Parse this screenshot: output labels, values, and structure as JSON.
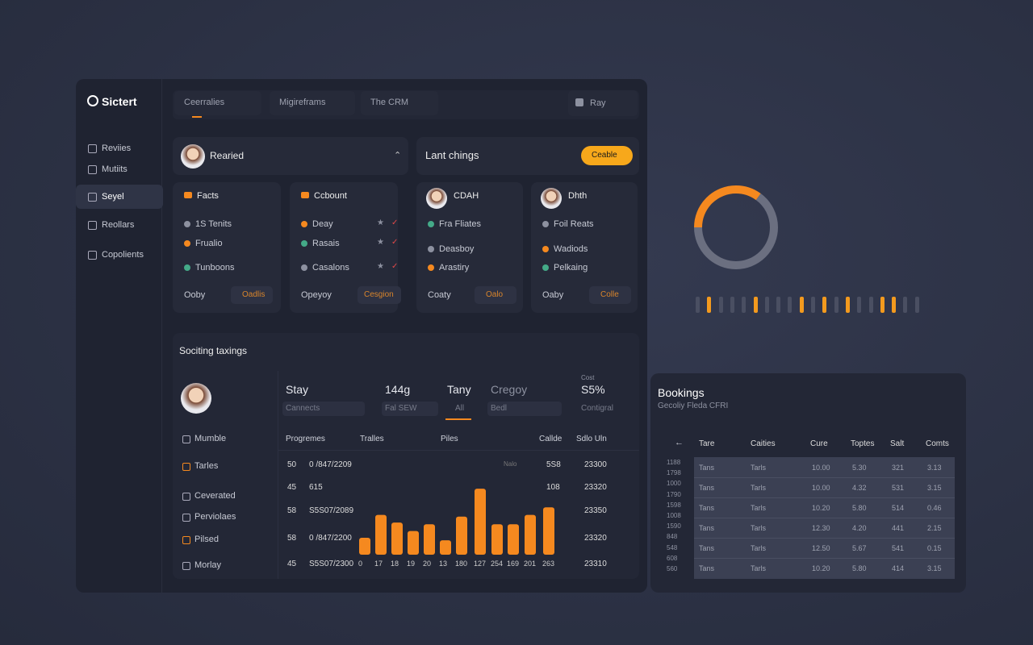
{
  "sidebar": {
    "logo": "Sictert",
    "nav": [
      "Reviies",
      "Mutiits",
      "Seyel",
      "Reollars",
      "Copolients"
    ]
  },
  "tabs": [
    "Ceerralies",
    "Migireframs",
    "The CRM"
  ],
  "user": "Ray",
  "profile_card": {
    "title": "Rearied"
  },
  "action_card": {
    "title": "Lant chings",
    "button": "Ceable"
  },
  "cards": [
    {
      "title": "Facts",
      "items": [
        "1S Tenits",
        "Frualio",
        "Tunboons"
      ],
      "footer": [
        "Ooby",
        "Oadlis"
      ]
    },
    {
      "title": "Ccbount",
      "items": [
        "Deay",
        "Rasais",
        "Casalons"
      ],
      "footer": [
        "Opeyoy",
        "Cesgion"
      ]
    },
    {
      "title": "CDAH",
      "items": [
        "Fra Fliates",
        "Deasboy",
        "Arastiry"
      ],
      "footer": [
        "Coaty",
        "Oalo"
      ]
    },
    {
      "title": "Dhth",
      "items": [
        "Foil Reats",
        "Wadiods",
        "Pelkaing"
      ],
      "footer": [
        "Oaby",
        "Colle"
      ]
    }
  ],
  "ratings": {
    "title": "Sociting taxings",
    "filters": [
      {
        "label": "Stay",
        "field": "Cannects"
      },
      {
        "label": "144g",
        "field": "Fal SEW"
      },
      {
        "label": "Tany",
        "field": "All"
      },
      {
        "label": "Cregoy",
        "field": "Bedl"
      },
      {
        "label": "S5%",
        "caption": "Cost",
        "field": "Contigral"
      }
    ],
    "menu": [
      "Mumble",
      "Tarles",
      "Ceverated",
      "Perviolaes",
      "Pilsed",
      "Morlay"
    ],
    "columns": [
      "Progremes",
      "Tralles",
      "Piles",
      "Callde",
      "Sdlo Uln"
    ],
    "rows": [
      {
        "n": "50",
        "date": "0 /847/2209",
        "note": "Nalo",
        "value": "5S8",
        "total": "23300"
      },
      {
        "n": "45",
        "date": "615",
        "value": "108",
        "total": "23320"
      },
      {
        "n": "58",
        "date": "S5S07/2089",
        "total": "23350"
      },
      {
        "n": "58",
        "date": "0 /847/2200",
        "total": "23320"
      },
      {
        "n": "45",
        "date": "S5S07/2300",
        "total": "23310"
      }
    ],
    "chart": {
      "type": "bar",
      "categories": [
        "0",
        "17",
        "18",
        "19",
        "20",
        "13",
        "180",
        "127",
        "254",
        "169",
        "201",
        "263"
      ],
      "values": [
        20,
        47,
        38,
        28,
        36,
        17,
        45,
        78,
        36,
        36,
        47,
        56
      ],
      "ylim": [
        0,
        80
      ],
      "color": "#f5891f"
    }
  },
  "donut": {
    "values": [
      35,
      65
    ],
    "colors": [
      "#f5891f",
      "#6b6f80"
    ]
  },
  "bookings": {
    "title": "Bookings",
    "subtitle": "Gecoliy Fleda CFRI",
    "columns": [
      "Tare",
      "Caities",
      "Cure",
      "Toptes",
      "Salt",
      "Comts"
    ],
    "axis": [
      "1188",
      "1798",
      "1000",
      "1790",
      "1598",
      "1008",
      "1590",
      "848",
      "548",
      "608",
      "560"
    ],
    "rows": [
      [
        "Tans",
        "Tarls",
        "10.00",
        "5.30",
        "321",
        "3.13"
      ],
      [
        "Tans",
        "Tarls",
        "10.00",
        "4.32",
        "531",
        "3.15"
      ],
      [
        "Tans",
        "Tarls",
        "10.20",
        "5.80",
        "514",
        "0.46"
      ],
      [
        "Tans",
        "Tarls",
        "12.30",
        "4.20",
        "441",
        "2.15"
      ],
      [
        "Tans",
        "Tarls",
        "12.50",
        "5.67",
        "541",
        "0.15"
      ],
      [
        "Tans",
        "Tarls",
        "10.20",
        "5.80",
        "414",
        "3.15"
      ]
    ]
  }
}
